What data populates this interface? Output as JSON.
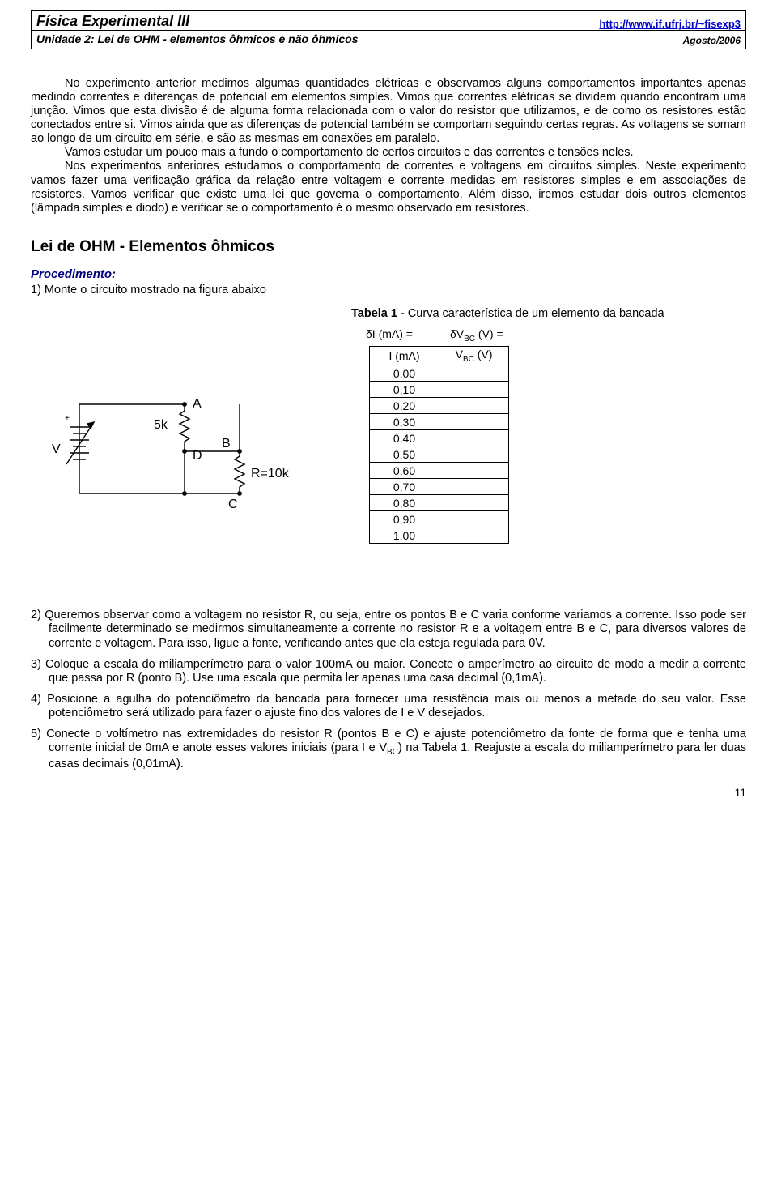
{
  "header": {
    "title": "Física Experimental III",
    "url": "http://www.if.ufrj.br/~fisexp3",
    "unit": "Unidade 2: Lei de OHM - elementos ôhmicos e não ôhmicos",
    "date": "Agosto/2006"
  },
  "intro": {
    "p1": "No experimento anterior medimos algumas quantidades elétricas e observamos alguns comportamentos importantes apenas medindo correntes e diferenças de potencial em elementos simples. Vimos que correntes elétricas se dividem quando encontram uma junção. Vimos que esta divisão é de alguma forma relacionada com o valor do resistor que utilizamos, e de como os resistores estão conectados entre si. Vimos ainda que as diferenças de potencial também se comportam seguindo certas regras. As voltagens se somam ao longo de um circuito em série, e são as mesmas em conexões em paralelo.",
    "p2": "Vamos estudar um pouco mais a fundo o comportamento de certos circuitos e das correntes e tensões neles.",
    "p3": "Nos experimentos anteriores estudamos o comportamento de correntes e voltagens em circuitos simples.  Neste experimento vamos fazer uma verificação gráfica da relação entre voltagem e corrente medidas em resistores simples e em associações de resistores. Vamos verificar que existe uma lei que governa o comportamento. Além disso, iremos estudar dois outros elementos (lâmpada simples e diodo) e verificar se o comportamento é o mesmo observado em resistores."
  },
  "section_title": "Lei de OHM - Elementos ôhmicos",
  "procedure_label": "Procedimento:",
  "step1": "1) Monte o circuito mostrado na figura abaixo",
  "circuit": {
    "V_label": "V",
    "r1_label": "5k",
    "A_label": "A",
    "B_label": "B",
    "C_label": "C",
    "D_label": "D",
    "R_label": "R=10k",
    "plus": "+"
  },
  "table": {
    "caption_bold": "Tabela 1",
    "caption_rest": " - Curva característica de um elemento da bancada",
    "uncert_I": "δI (mA) =",
    "uncert_V": "δV",
    "uncert_V_sub": "BC",
    "uncert_V_rest": " (V) =",
    "col_I": "I (mA)",
    "col_V_pre": "V",
    "col_V_sub": "BC",
    "col_V_post": " (V)",
    "rows": [
      "0,00",
      "0,10",
      "0,20",
      "0,30",
      "0,40",
      "0,50",
      "0,60",
      "0,70",
      "0,80",
      "0,90",
      "1,00"
    ]
  },
  "steps": {
    "s2": "2) Queremos observar como a voltagem no resistor R, ou seja, entre os pontos B e C varia conforme variamos a corrente. Isso pode ser facilmente determinado se medirmos simultaneamente a corrente no resistor R e a voltagem entre B e C, para diversos valores de corrente e voltagem.  Para isso, ligue a fonte, verificando antes que ela esteja regulada para 0V.",
    "s3": "3) Coloque a escala do miliamperímetro para o valor 100mA ou maior. Conecte o amperímetro ao circuito de modo a medir a corrente que passa por R (ponto B). Use uma escala que permita ler apenas uma casa decimal (0,1mA).",
    "s4": "4) Posicione a agulha do potenciômetro da bancada para fornecer uma resistência mais ou menos a metade do seu valor.  Esse potenciômetro será utilizado para fazer o ajuste fino dos valores de I e V desejados.",
    "s5_a": "5) Conecte o voltímetro nas extremidades do resistor R (pontos B e C) e ajuste potenciômetro da fonte de forma que e tenha uma corrente inicial de 0mA e anote esses valores iniciais (para I e V",
    "s5_sub": "BC",
    "s5_b": ") na Tabela 1. Reajuste a escala do miliamperímetro para ler duas casas decimais (0,01mA)."
  },
  "page_number": "11"
}
